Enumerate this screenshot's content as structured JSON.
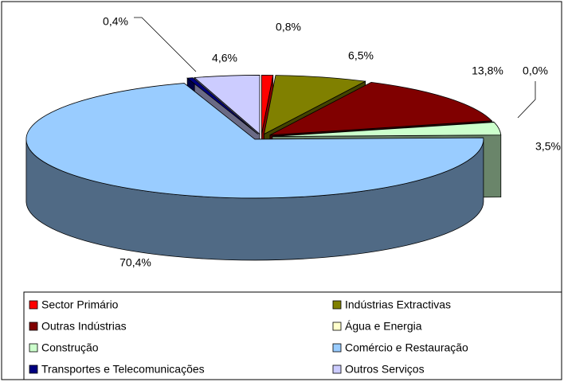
{
  "chart_data": {
    "type": "pie",
    "categories": [
      "Sector Primário",
      "Indústrias Extractivas",
      "Outras Indústrias",
      "Água e Energia",
      "Construção",
      "Comércio e Restauração",
      "Transportes e Telecomunicações",
      "Outros Serviços"
    ],
    "values": [
      0.8,
      6.5,
      13.8,
      0.0,
      3.5,
      70.4,
      0.4,
      4.6
    ],
    "value_labels": [
      "0,8%",
      "6,5%",
      "13,8%",
      "0,0%",
      "3,5%",
      "70,4%",
      "0,4%",
      "4,6%"
    ],
    "colors": [
      "#ff0000",
      "#808000",
      "#800000",
      "#ffffcc",
      "#ccffcc",
      "#99ccff",
      "#000080",
      "#ccccff"
    ],
    "legend": "bottom"
  }
}
